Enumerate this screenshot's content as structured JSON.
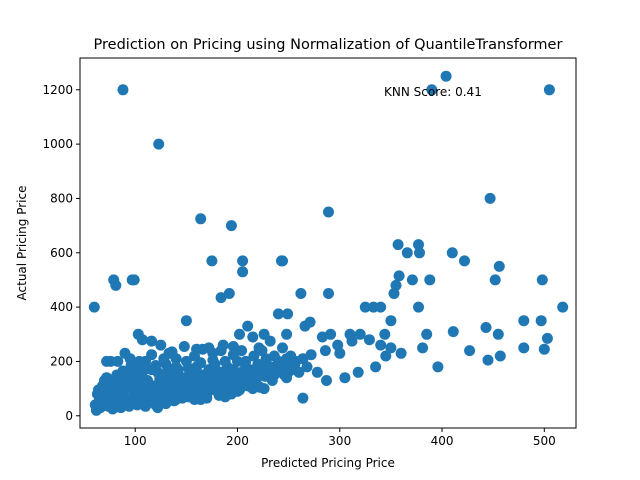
{
  "chart_data": {
    "type": "scatter",
    "title": "Prediction on Pricing using Normalization of QuantileTransformer",
    "xlabel": "Predicted Pricing Price",
    "ylabel": "Actual Pricing Price",
    "annotation": "KNN Score: 0.41",
    "xlim": [
      46,
      531
    ],
    "ylim": [
      -45,
      1317
    ],
    "xticks": [
      100,
      200,
      300,
      400,
      500
    ],
    "yticks": [
      0,
      200,
      400,
      600,
      800,
      1000,
      1200
    ],
    "marker_color": "#1f77b4",
    "grid": false,
    "points": [
      [
        88,
        1200
      ],
      [
        123,
        1000
      ],
      [
        164,
        725
      ],
      [
        194,
        700
      ],
      [
        289,
        750
      ],
      [
        404,
        1250
      ],
      [
        390,
        1200
      ],
      [
        505,
        1200
      ],
      [
        447,
        800
      ],
      [
        60,
        400
      ],
      [
        79,
        500
      ],
      [
        81,
        480
      ],
      [
        97,
        500
      ],
      [
        99,
        500
      ],
      [
        175,
        570
      ],
      [
        205,
        570
      ],
      [
        205,
        530
      ],
      [
        243,
        570
      ],
      [
        244,
        570
      ],
      [
        184,
        435
      ],
      [
        192,
        450
      ],
      [
        150,
        350
      ],
      [
        262,
        450
      ],
      [
        289,
        450
      ],
      [
        240,
        375
      ],
      [
        249,
        375
      ],
      [
        248,
        300
      ],
      [
        266,
        330
      ],
      [
        271,
        345
      ],
      [
        283,
        290
      ],
      [
        291,
        300
      ],
      [
        300,
        230
      ],
      [
        310,
        300
      ],
      [
        320,
        300
      ],
      [
        325,
        400
      ],
      [
        333,
        400
      ],
      [
        340,
        400
      ],
      [
        344,
        300
      ],
      [
        350,
        350
      ],
      [
        353,
        450
      ],
      [
        355,
        480
      ],
      [
        357,
        630
      ],
      [
        358,
        515
      ],
      [
        366,
        600
      ],
      [
        371,
        500
      ],
      [
        377,
        630
      ],
      [
        378,
        600
      ],
      [
        377,
        400
      ],
      [
        381,
        250
      ],
      [
        385,
        300
      ],
      [
        388,
        500
      ],
      [
        396,
        180
      ],
      [
        410,
        600
      ],
      [
        411,
        310
      ],
      [
        422,
        570
      ],
      [
        427,
        240
      ],
      [
        443,
        325
      ],
      [
        445,
        205
      ],
      [
        452,
        500
      ],
      [
        455,
        300
      ],
      [
        456,
        550
      ],
      [
        457,
        220
      ],
      [
        480,
        350
      ],
      [
        480,
        250
      ],
      [
        497,
        350
      ],
      [
        498,
        500
      ],
      [
        500,
        245
      ],
      [
        503,
        285
      ],
      [
        518,
        400
      ],
      [
        264,
        65
      ],
      [
        287,
        130
      ],
      [
        305,
        140
      ],
      [
        318,
        160
      ],
      [
        335,
        180
      ],
      [
        345,
        220
      ],
      [
        350,
        250
      ],
      [
        360,
        230
      ],
      [
        340,
        260
      ],
      [
        329,
        280
      ],
      [
        312,
        275
      ],
      [
        298,
        260
      ],
      [
        286,
        240
      ],
      [
        278,
        160
      ],
      [
        272,
        225
      ],
      [
        257,
        200
      ],
      [
        252,
        180
      ],
      [
        246,
        150
      ],
      [
        234,
        130
      ],
      [
        226,
        100
      ],
      [
        215,
        100
      ],
      [
        207,
        120
      ],
      [
        200,
        140
      ],
      [
        226,
        300
      ],
      [
        221,
        250
      ],
      [
        232,
        275
      ],
      [
        210,
        330
      ],
      [
        215,
        290
      ],
      [
        202,
        300
      ],
      [
        196,
        255
      ],
      [
        186,
        260
      ],
      [
        176,
        230
      ],
      [
        166,
        245
      ],
      [
        158,
        220
      ],
      [
        150,
        200
      ],
      [
        140,
        210
      ],
      [
        133,
        230
      ],
      [
        125,
        260
      ],
      [
        116,
        275
      ],
      [
        107,
        280
      ],
      [
        103,
        300
      ],
      [
        95,
        210
      ],
      [
        90,
        230
      ],
      [
        83,
        200
      ],
      [
        76,
        200
      ],
      [
        72,
        200
      ],
      [
        63,
        80
      ],
      [
        61,
        40
      ],
      [
        62,
        20
      ],
      [
        65,
        60
      ],
      [
        68,
        110
      ],
      [
        70,
        130
      ],
      [
        73,
        90
      ],
      [
        75,
        50
      ],
      [
        78,
        120
      ],
      [
        80,
        70
      ],
      [
        82,
        150
      ],
      [
        84,
        40
      ],
      [
        86,
        110
      ],
      [
        88,
        80
      ],
      [
        90,
        140
      ],
      [
        92,
        60
      ],
      [
        94,
        160
      ],
      [
        96,
        100
      ],
      [
        98,
        50
      ],
      [
        100,
        180
      ],
      [
        102,
        120
      ],
      [
        104,
        70
      ],
      [
        106,
        150
      ],
      [
        108,
        90
      ],
      [
        110,
        200
      ],
      [
        112,
        130
      ],
      [
        114,
        60
      ],
      [
        116,
        170
      ],
      [
        118,
        110
      ],
      [
        120,
        40
      ],
      [
        122,
        160
      ],
      [
        124,
        90
      ],
      [
        126,
        140
      ],
      [
        128,
        70
      ],
      [
        130,
        190
      ],
      [
        132,
        120
      ],
      [
        134,
        80
      ],
      [
        136,
        150
      ],
      [
        138,
        100
      ],
      [
        140,
        60
      ],
      [
        142,
        170
      ],
      [
        144,
        120
      ],
      [
        146,
        80
      ],
      [
        148,
        140
      ],
      [
        150,
        110
      ],
      [
        152,
        70
      ],
      [
        154,
        160
      ],
      [
        156,
        120
      ],
      [
        158,
        90
      ],
      [
        160,
        180
      ],
      [
        162,
        130
      ],
      [
        164,
        60
      ],
      [
        166,
        150
      ],
      [
        168,
        110
      ],
      [
        170,
        80
      ],
      [
        172,
        170
      ],
      [
        174,
        130
      ],
      [
        176,
        100
      ],
      [
        178,
        190
      ],
      [
        180,
        140
      ],
      [
        182,
        90
      ],
      [
        184,
        160
      ],
      [
        186,
        120
      ],
      [
        188,
        70
      ],
      [
        190,
        180
      ],
      [
        192,
        140
      ],
      [
        194,
        100
      ],
      [
        196,
        170
      ],
      [
        198,
        130
      ],
      [
        200,
        90
      ],
      [
        204,
        160
      ],
      [
        208,
        200
      ],
      [
        212,
        170
      ],
      [
        216,
        140
      ],
      [
        220,
        190
      ],
      [
        224,
        160
      ],
      [
        228,
        210
      ],
      [
        232,
        180
      ],
      [
        236,
        150
      ],
      [
        240,
        200
      ],
      [
        244,
        170
      ],
      [
        248,
        140
      ],
      [
        252,
        220
      ],
      [
        256,
        190
      ],
      [
        260,
        160
      ],
      [
        264,
        210
      ],
      [
        268,
        180
      ],
      [
        66,
        30
      ],
      [
        70,
        45
      ],
      [
        74,
        35
      ],
      [
        78,
        25
      ],
      [
        82,
        55
      ],
      [
        86,
        30
      ],
      [
        90,
        45
      ],
      [
        94,
        35
      ],
      [
        98,
        65
      ],
      [
        102,
        40
      ],
      [
        106,
        55
      ],
      [
        110,
        35
      ],
      [
        114,
        75
      ],
      [
        118,
        50
      ],
      [
        122,
        30
      ],
      [
        126,
        60
      ],
      [
        130,
        45
      ],
      [
        134,
        70
      ],
      [
        138,
        55
      ],
      [
        142,
        90
      ],
      [
        146,
        65
      ],
      [
        150,
        100
      ],
      [
        154,
        80
      ],
      [
        158,
        60
      ],
      [
        162,
        110
      ],
      [
        166,
        85
      ],
      [
        170,
        65
      ],
      [
        174,
        120
      ],
      [
        178,
        95
      ],
      [
        182,
        75
      ],
      [
        186,
        130
      ],
      [
        190,
        105
      ],
      [
        194,
        80
      ],
      [
        198,
        115
      ],
      [
        202,
        95
      ],
      [
        206,
        130
      ],
      [
        210,
        110
      ],
      [
        214,
        150
      ],
      [
        218,
        125
      ],
      [
        222,
        105
      ],
      [
        64,
        95
      ],
      [
        68,
        75
      ],
      [
        72,
        140
      ],
      [
        76,
        85
      ],
      [
        80,
        100
      ],
      [
        84,
        130
      ],
      [
        88,
        165
      ],
      [
        92,
        125
      ],
      [
        96,
        185
      ],
      [
        100,
        145
      ],
      [
        104,
        200
      ],
      [
        108,
        165
      ],
      [
        112,
        115
      ],
      [
        116,
        225
      ],
      [
        120,
        185
      ],
      [
        124,
        135
      ],
      [
        128,
        210
      ],
      [
        132,
        170
      ],
      [
        136,
        235
      ],
      [
        140,
        180
      ],
      [
        144,
        140
      ],
      [
        148,
        255
      ],
      [
        152,
        175
      ],
      [
        156,
        135
      ],
      [
        160,
        245
      ],
      [
        164,
        195
      ],
      [
        168,
        150
      ],
      [
        172,
        250
      ],
      [
        176,
        205
      ],
      [
        180,
        160
      ],
      [
        184,
        240
      ],
      [
        188,
        200
      ],
      [
        192,
        155
      ],
      [
        196,
        225
      ],
      [
        200,
        200
      ],
      [
        204,
        240
      ],
      [
        208,
        180
      ],
      [
        212,
        150
      ],
      [
        216,
        220
      ],
      [
        220,
        180
      ],
      [
        224,
        240
      ],
      [
        228,
        200
      ],
      [
        232,
        160
      ],
      [
        236,
        220
      ],
      [
        240,
        190
      ],
      [
        244,
        250
      ],
      [
        248,
        210
      ],
      [
        95,
        60
      ],
      [
        99,
        80
      ],
      [
        103,
        95
      ],
      [
        107,
        70
      ],
      [
        111,
        85
      ],
      [
        115,
        100
      ],
      [
        119,
        70
      ],
      [
        123,
        115
      ],
      [
        127,
        95
      ],
      [
        131,
        130
      ],
      [
        135,
        100
      ],
      [
        139,
        120
      ],
      [
        143,
        95
      ],
      [
        147,
        130
      ],
      [
        151,
        105
      ],
      [
        155,
        140
      ],
      [
        159,
        110
      ],
      [
        163,
        150
      ],
      [
        167,
        125
      ],
      [
        171,
        140
      ],
      [
        175,
        120
      ],
      [
        179,
        150
      ],
      [
        183,
        125
      ],
      [
        187,
        150
      ],
      [
        191,
        125
      ],
      [
        195,
        145
      ],
      [
        199,
        120
      ],
      [
        203,
        140
      ],
      [
        207,
        160
      ],
      [
        211,
        130
      ],
      [
        215,
        160
      ],
      [
        219,
        140
      ],
      [
        223,
        170
      ],
      [
        227,
        145
      ],
      [
        231,
        175
      ],
      [
        235,
        150
      ],
      [
        239,
        180
      ],
      [
        243,
        160
      ],
      [
        247,
        185
      ],
      [
        251,
        165
      ]
    ]
  }
}
